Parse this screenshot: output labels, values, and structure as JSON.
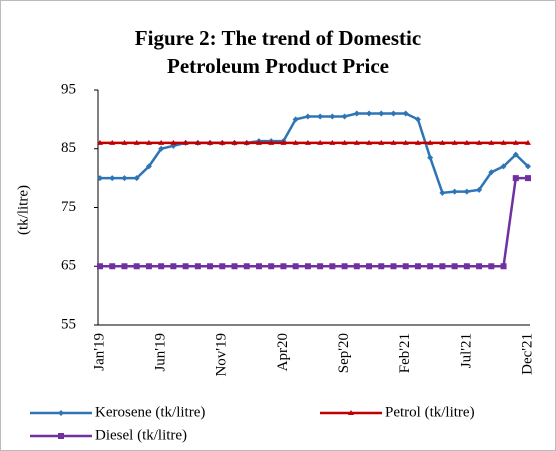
{
  "chart_data": {
    "type": "line",
    "title_lines": [
      "Figure 2: The trend of Domestic",
      "Petroleum Product Price"
    ],
    "y_label": "(tk/litre)",
    "categories": [
      "Jan'19",
      null,
      null,
      null,
      null,
      "Jun'19",
      null,
      null,
      null,
      null,
      "Nov'19",
      null,
      null,
      null,
      null,
      "Apr20",
      null,
      null,
      null,
      null,
      "Sep'20",
      null,
      null,
      null,
      null,
      "Feb'21",
      null,
      null,
      null,
      null,
      "Jul'21",
      null,
      null,
      null,
      null,
      "Dec'21"
    ],
    "series": [
      {
        "name": "Kerosene (tk/litre)",
        "color": "#2e75b6",
        "marker": "diamond",
        "values": [
          80,
          80,
          80,
          80,
          82,
          85,
          85.5,
          86,
          86,
          86,
          86,
          86,
          86,
          86.3,
          86.3,
          86.3,
          90,
          90.5,
          90.5,
          90.5,
          90.5,
          91,
          91,
          91,
          91,
          91,
          90,
          83.5,
          77.5,
          77.7,
          77.7,
          78,
          81,
          82,
          84,
          82
        ]
      },
      {
        "name": "Petrol (tk/litre)",
        "color": "#c00000",
        "marker": "triangle",
        "values": [
          86,
          86,
          86,
          86,
          86,
          86,
          86,
          86,
          86,
          86,
          86,
          86,
          86,
          86,
          86,
          86,
          86,
          86,
          86,
          86,
          86,
          86,
          86,
          86,
          86,
          86,
          86,
          86,
          86,
          86,
          86,
          86,
          86,
          86,
          86,
          86
        ]
      },
      {
        "name": "Diesel (tk/litre)",
        "color": "#7030a0",
        "marker": "square",
        "values": [
          65,
          65,
          65,
          65,
          65,
          65,
          65,
          65,
          65,
          65,
          65,
          65,
          65,
          65,
          65,
          65,
          65,
          65,
          65,
          65,
          65,
          65,
          65,
          65,
          65,
          65,
          65,
          65,
          65,
          65,
          65,
          65,
          65,
          65,
          80,
          80
        ]
      }
    ],
    "ylim": [
      55,
      95
    ],
    "yticks": [
      55,
      65,
      75,
      85,
      95
    ],
    "grid": false
  }
}
